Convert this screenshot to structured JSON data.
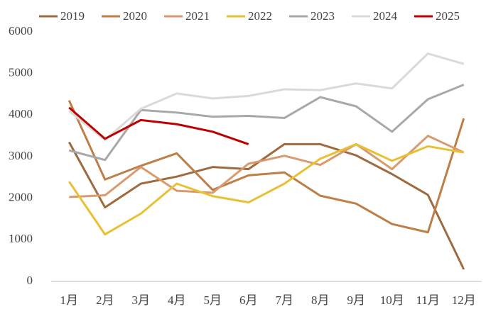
{
  "chart_data": {
    "type": "line",
    "categories": [
      "1月",
      "2月",
      "3月",
      "4月",
      "5月",
      "6月",
      "7月",
      "8月",
      "9月",
      "10月",
      "11月",
      "12月"
    ],
    "series": [
      {
        "name": "2019",
        "color": "#9e6b3f",
        "values": [
          3350,
          1780,
          2350,
          2520,
          2750,
          2700,
          3300,
          3300,
          3030,
          2580,
          2080,
          290
        ]
      },
      {
        "name": "2020",
        "color": "#bd7e47",
        "values": [
          4350,
          2450,
          2780,
          3080,
          2200,
          2550,
          2620,
          2060,
          1870,
          1380,
          1180,
          3920
        ]
      },
      {
        "name": "2021",
        "color": "#d89a6e",
        "values": [
          2030,
          2070,
          2750,
          2180,
          2130,
          2830,
          3020,
          2800,
          3300,
          2700,
          3500,
          3100
        ]
      },
      {
        "name": "2022",
        "color": "#e8c032",
        "values": [
          2400,
          1130,
          1630,
          2350,
          2050,
          1900,
          2350,
          2950,
          3300,
          2900,
          3250,
          3100
        ]
      },
      {
        "name": "2023",
        "color": "#a8a8a8",
        "values": [
          3150,
          2920,
          4120,
          4060,
          3960,
          3980,
          3930,
          4430,
          4210,
          3600,
          4380,
          4730
        ]
      },
      {
        "name": "2024",
        "color": "#dadada",
        "values": [
          4100,
          3400,
          4150,
          4520,
          4400,
          4460,
          4620,
          4600,
          4760,
          4640,
          5480,
          5230
        ]
      },
      {
        "name": "2025",
        "color": "#c00000",
        "values": [
          4180,
          3430,
          3880,
          3780,
          3600,
          3300,
          null,
          null,
          null,
          null,
          null,
          null
        ]
      }
    ],
    "ylim": [
      0,
      6000
    ],
    "yticks": [
      0,
      1000,
      2000,
      3000,
      4000,
      5000,
      6000
    ],
    "grid": false
  }
}
